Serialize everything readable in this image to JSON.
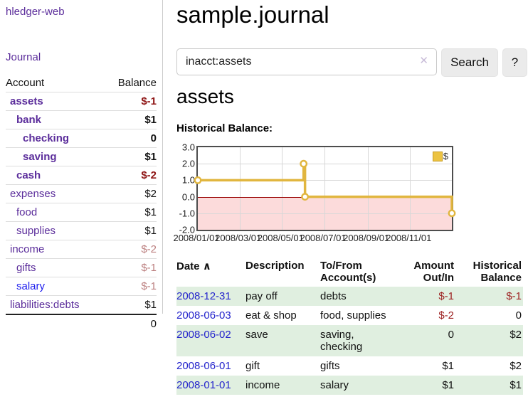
{
  "sidebar": {
    "app_title": "hledger-web",
    "journal_link": "Journal",
    "table": {
      "headers": {
        "account": "Account",
        "balance": "Balance"
      },
      "rows": [
        {
          "account": "assets",
          "balance": "$-1",
          "depth": 1,
          "strong": true,
          "neg": "dark"
        },
        {
          "account": "bank",
          "balance": "$1",
          "depth": 2,
          "strong": true
        },
        {
          "account": "checking",
          "balance": "0",
          "depth": 3,
          "strong": true
        },
        {
          "account": "saving",
          "balance": "$1",
          "depth": 3,
          "strong": true
        },
        {
          "account": "cash",
          "balance": "$-2",
          "depth": 2,
          "strong": true,
          "neg": "dark"
        },
        {
          "account": "expenses",
          "balance": "$2",
          "depth": 1
        },
        {
          "account": "food",
          "balance": "$1",
          "depth": 2
        },
        {
          "account": "supplies",
          "balance": "$1",
          "depth": 2
        },
        {
          "account": "income",
          "balance": "$-2",
          "depth": 1,
          "neg": "light"
        },
        {
          "account": "gifts",
          "balance": "$-1",
          "depth": 2,
          "neg": "light"
        },
        {
          "account": "salary",
          "balance": "$-1",
          "depth": 2,
          "neg": "light",
          "link_color": "blue"
        },
        {
          "account": "liabilities:debts",
          "balance": "$1",
          "depth": 1
        }
      ],
      "total": "0"
    }
  },
  "main": {
    "title": "sample.journal",
    "search": {
      "value": "inacct:assets",
      "clear_icon": "✕",
      "button_label": "Search",
      "help_label": "?"
    },
    "account_heading": "assets",
    "chart_heading": "Historical Balance:",
    "register": {
      "columns": [
        {
          "label": "Date",
          "sort_icon": "∧"
        },
        {
          "label": "Description"
        },
        {
          "label": "To/From Account(s)"
        },
        {
          "label": "Amount Out/In",
          "align": "right"
        },
        {
          "label": "Historical Balance",
          "align": "right"
        }
      ],
      "rows": [
        {
          "date": "2008-12-31",
          "description": "pay off",
          "accounts": "debts",
          "amount": "$-1",
          "balance": "$-1",
          "amount_neg": true,
          "balance_neg": true
        },
        {
          "date": "2008-06-03",
          "description": "eat & shop",
          "accounts": "food, supplies",
          "amount": "$-2",
          "balance": "0",
          "amount_neg": true
        },
        {
          "date": "2008-06-02",
          "description": "save",
          "accounts": "saving, checking",
          "amount": "0",
          "balance": "$2"
        },
        {
          "date": "2008-06-01",
          "description": "gift",
          "accounts": "gifts",
          "amount": "$1",
          "balance": "$2"
        },
        {
          "date": "2008-01-01",
          "description": "income",
          "accounts": "salary",
          "amount": "$1",
          "balance": "$1"
        }
      ]
    }
  },
  "chart_data": {
    "type": "line",
    "title": "Historical Balance",
    "step": "after",
    "series": [
      {
        "name": "$",
        "points": [
          [
            "2008/01/01",
            1
          ],
          [
            "2008/06/01",
            2
          ],
          [
            "2008/06/03",
            0
          ],
          [
            "2008/12/31",
            -1
          ]
        ]
      }
    ],
    "x_range": [
      "2008/01/01",
      "2008/12/31"
    ],
    "x_ticks": [
      "2008/01/01",
      "2008/03/01",
      "2008/05/01",
      "2008/07/01",
      "2008/09/01",
      "2008/11/01"
    ],
    "y_ticks": [
      3.0,
      2.0,
      1.0,
      0.0,
      -1.0,
      -2.0
    ],
    "ylim": [
      -2,
      3
    ],
    "grid": true,
    "legend": {
      "label": "$",
      "position": "top-right"
    },
    "colors": {
      "line": "#e1b63f",
      "marker_fill": "#ffffff",
      "negative_region": "#fcdbdb",
      "zero_line": "#990000"
    }
  }
}
